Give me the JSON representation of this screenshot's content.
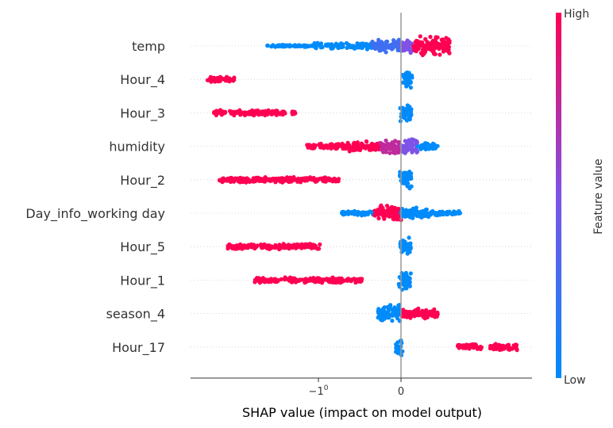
{
  "chart_data": {
    "type": "scatter",
    "subtype": "shap-beeswarm",
    "xlabel": "SHAP value (impact on model output)",
    "x_ticks": [
      {
        "value": -1,
        "label": "−1",
        "exponent": "0"
      },
      {
        "value": 0,
        "label": "0",
        "exponent": ""
      }
    ],
    "xlim": [
      -2.5,
      1.6
    ],
    "zero_line": true,
    "colorbar": {
      "label": "Feature value",
      "high_label": "High",
      "low_label": "Low",
      "low_color": "#008bfb",
      "mid_color": "#7e53e6",
      "high_color": "#ff0052"
    },
    "features": [
      {
        "name": "temp",
        "segments": [
          {
            "x": [
              -1.62,
              -1.05
            ],
            "color": "low",
            "spread": 0.12
          },
          {
            "x": [
              -1.05,
              -0.35
            ],
            "color": "low",
            "spread": 0.3
          },
          {
            "x": [
              -0.35,
              0.0
            ],
            "color": "lowmid",
            "spread": 0.55
          },
          {
            "x": [
              0.0,
              0.15
            ],
            "color": "mid",
            "spread": 0.7
          },
          {
            "x": [
              0.15,
              0.6
            ],
            "color": "high",
            "spread": 0.9
          }
        ]
      },
      {
        "name": "Hour_4",
        "segments": [
          {
            "x": [
              -2.35,
              -2.02
            ],
            "color": "high",
            "spread": 0.25
          },
          {
            "x": [
              0.02,
              0.14
            ],
            "color": "low",
            "spread": 0.85
          }
        ]
      },
      {
        "name": "Hour_3",
        "segments": [
          {
            "x": [
              -2.28,
              -1.4
            ],
            "color": "high",
            "spread": 0.25
          },
          {
            "x": [
              -1.32,
              -1.26
            ],
            "color": "high",
            "spread": 0.15
          },
          {
            "x": [
              -0.01,
              0.14
            ],
            "color": "low",
            "spread": 0.85
          }
        ]
      },
      {
        "name": "humidity",
        "segments": [
          {
            "x": [
              -1.14,
              -0.68
            ],
            "color": "high",
            "spread": 0.25
          },
          {
            "x": [
              -0.68,
              -0.25
            ],
            "color": "high",
            "spread": 0.45
          },
          {
            "x": [
              -0.25,
              0.0
            ],
            "color": "midhigh",
            "spread": 0.65
          },
          {
            "x": [
              0.0,
              0.2
            ],
            "color": "mid",
            "spread": 0.75
          },
          {
            "x": [
              0.2,
              0.45
            ],
            "color": "low",
            "spread": 0.35
          }
        ]
      },
      {
        "name": "Hour_2",
        "segments": [
          {
            "x": [
              -2.2,
              -0.75
            ],
            "color": "high",
            "spread": 0.25
          },
          {
            "x": [
              -0.02,
              0.13
            ],
            "color": "low",
            "spread": 0.85
          }
        ]
      },
      {
        "name": "Day_info_working day",
        "segments": [
          {
            "x": [
              -0.72,
              -0.32
            ],
            "color": "low",
            "spread": 0.2
          },
          {
            "x": [
              -0.32,
              0.0
            ],
            "color": "high",
            "spread": 0.75
          },
          {
            "x": [
              0.0,
              0.35
            ],
            "color": "low",
            "spread": 0.55
          },
          {
            "x": [
              0.35,
              0.72
            ],
            "color": "low",
            "spread": 0.2
          }
        ]
      },
      {
        "name": "Hour_5",
        "segments": [
          {
            "x": [
              -2.1,
              -0.98
            ],
            "color": "high",
            "spread": 0.25
          },
          {
            "x": [
              -0.01,
              0.12
            ],
            "color": "low",
            "spread": 0.85
          }
        ]
      },
      {
        "name": "Hour_1",
        "segments": [
          {
            "x": [
              -1.77,
              -1.05
            ],
            "color": "high",
            "spread": 0.25
          },
          {
            "x": [
              -1.05,
              -0.47
            ],
            "color": "high",
            "spread": 0.25
          },
          {
            "x": [
              -0.03,
              0.12
            ],
            "color": "low",
            "spread": 0.85
          }
        ]
      },
      {
        "name": "season_4",
        "segments": [
          {
            "x": [
              -0.28,
              0.0
            ],
            "color": "low",
            "spread": 0.8
          },
          {
            "x": [
              0.0,
              0.45
            ],
            "color": "high",
            "spread": 0.45
          }
        ]
      },
      {
        "name": "Hour_17",
        "segments": [
          {
            "x": [
              -0.07,
              0.02
            ],
            "color": "low",
            "spread": 0.85
          },
          {
            "x": [
              0.68,
              0.98
            ],
            "color": "high",
            "spread": 0.3
          },
          {
            "x": [
              1.08,
              1.42
            ],
            "color": "high",
            "spread": 0.3
          }
        ]
      }
    ]
  }
}
